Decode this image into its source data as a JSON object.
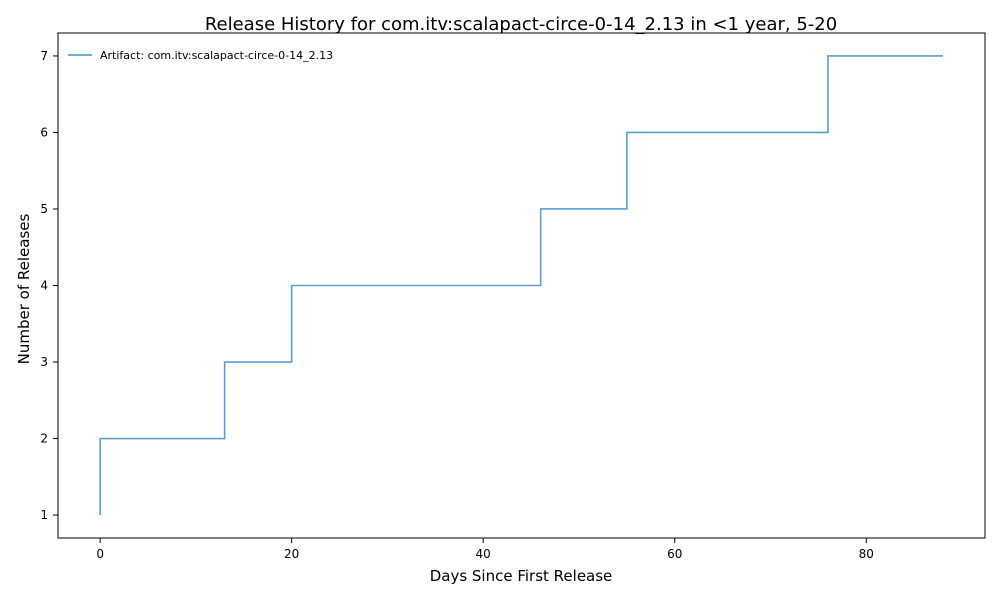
{
  "chart_data": {
    "type": "line",
    "title": "Release History for com.itv:scalapact-circe-0-14_2.13 in <1 year, 5-20",
    "xlabel": "Days Since First Release",
    "ylabel": "Number of Releases",
    "xlim": [
      -4.4,
      92.4
    ],
    "ylim": [
      0.7,
      7.3
    ],
    "xticks": [
      0,
      20,
      40,
      60,
      80
    ],
    "yticks": [
      1,
      2,
      3,
      4,
      5,
      6,
      7
    ],
    "grid": false,
    "legend_position": "top-left",
    "step": "post",
    "series": [
      {
        "name": "Artifact: com.itv:scalapact-circe-0-14_2.13",
        "color": "#5a9fd4",
        "x": [
          0,
          0,
          13,
          20,
          46,
          55,
          76,
          88
        ],
        "y": [
          1,
          2,
          3,
          4,
          5,
          6,
          7,
          7
        ]
      }
    ]
  }
}
